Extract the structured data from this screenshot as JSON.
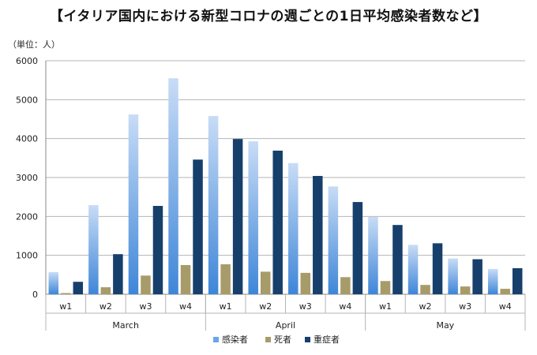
{
  "chart_data": {
    "type": "bar",
    "title": "【イタリア国内における新型コロナの週ごとの1日平均感染者数など】",
    "unit_label": "（単位：人）",
    "ylim": [
      0,
      6000
    ],
    "yticks": [
      "0",
      "1000",
      "2000",
      "3000",
      "4000",
      "5000",
      "6000"
    ],
    "grid": true,
    "legend_position": "bottom",
    "groups": [
      {
        "label": "March",
        "weeks": [
          "w1",
          "w2",
          "w3",
          "w4"
        ]
      },
      {
        "label": "April",
        "weeks": [
          "w1",
          "w2",
          "w3",
          "w4"
        ]
      },
      {
        "label": "May",
        "weeks": [
          "w1",
          "w2",
          "w3",
          "w4"
        ]
      }
    ],
    "series": [
      {
        "name": "感染者",
        "color": "#6aa6e8",
        "values": [
          570,
          2290,
          4620,
          5550,
          4580,
          3930,
          3370,
          2770,
          1990,
          1270,
          920,
          650
        ]
      },
      {
        "name": "死者",
        "color": "#a89b6a",
        "values": [
          30,
          180,
          480,
          750,
          770,
          580,
          550,
          440,
          340,
          240,
          200,
          140
        ]
      },
      {
        "name": "重症者",
        "color": "#173f6b",
        "values": [
          320,
          1030,
          2270,
          3460,
          3990,
          3690,
          3040,
          2370,
          1780,
          1310,
          900,
          670
        ]
      }
    ]
  }
}
